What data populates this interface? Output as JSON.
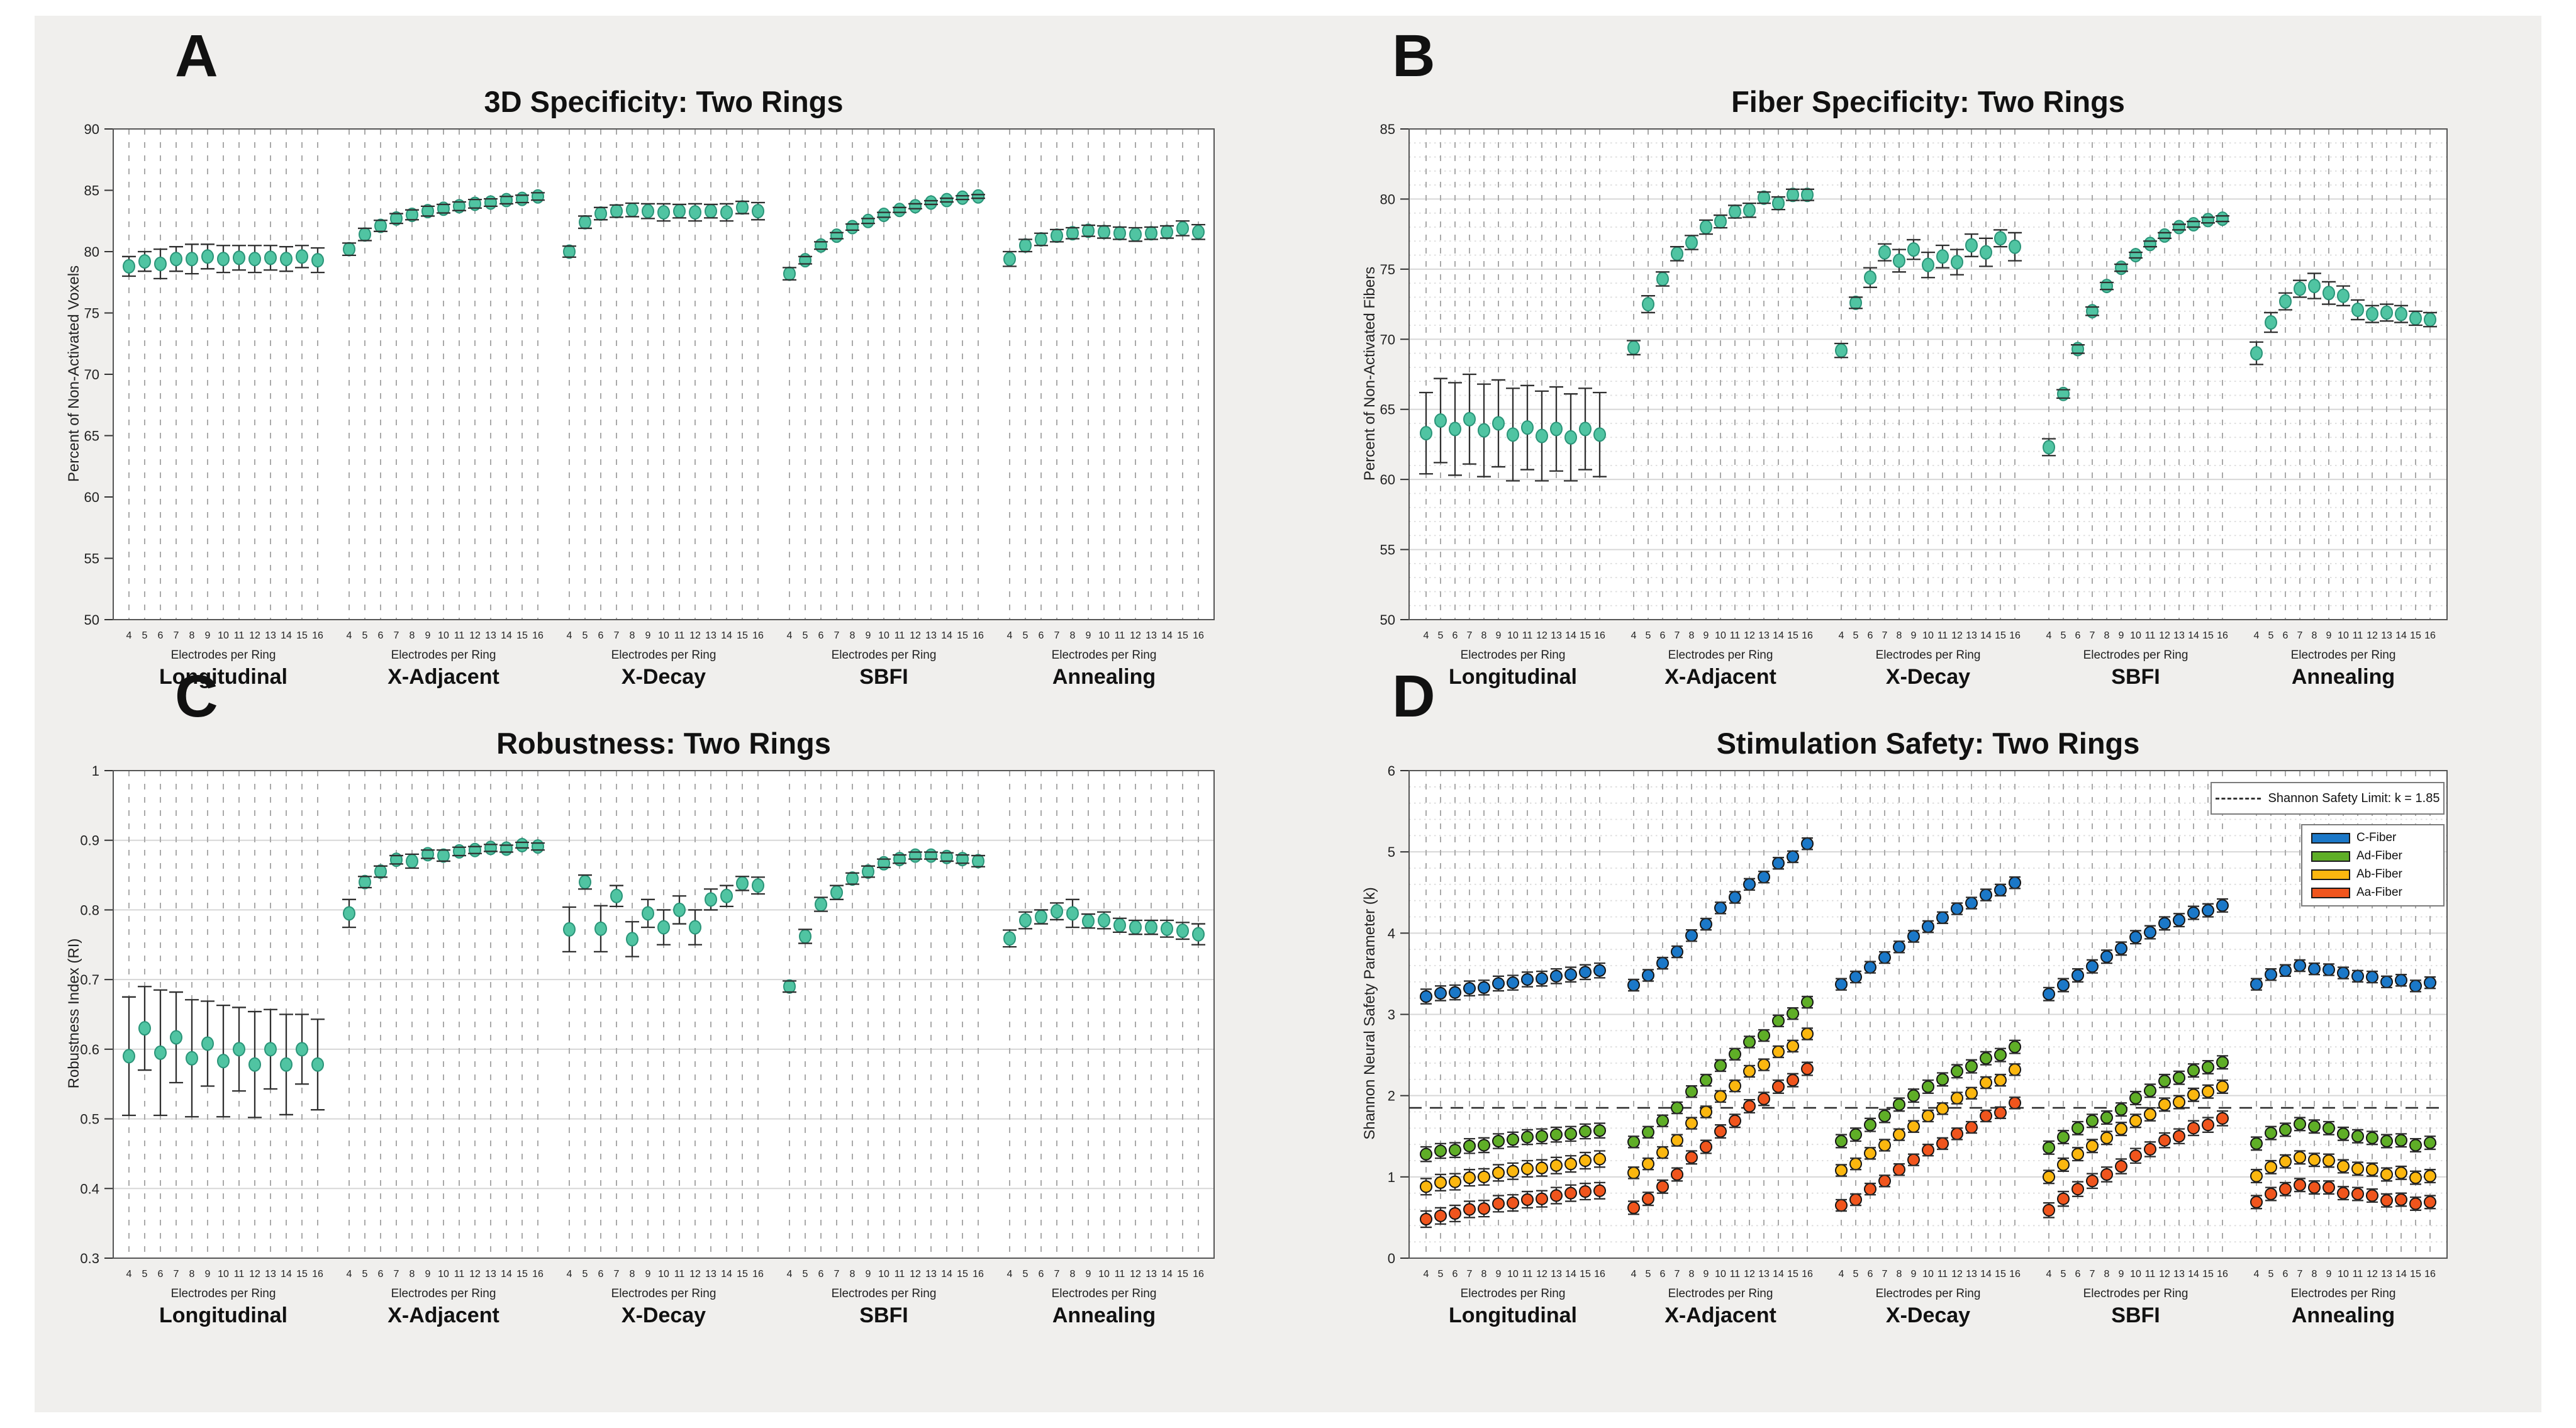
{
  "figure": {
    "background": "#f0efed",
    "panel_letters": [
      "A",
      "B",
      "C",
      "D"
    ]
  },
  "shared": {
    "x_tick_labels": [
      "4",
      "5",
      "6",
      "7",
      "8",
      "9",
      "10",
      "11",
      "12",
      "13",
      "14",
      "15",
      "16"
    ],
    "x_axis_label": "Electrodes per Ring",
    "group_labels": [
      "Longitudinal",
      "X-Adjacent",
      "X-Decay",
      "SBFI",
      "Annealing"
    ],
    "marker_color": "#50c4a2",
    "marker_edge_color": "#2a9478",
    "errorbar_color": "#2f2f2f",
    "gridline_dashed_color": "#a9a9a9",
    "gridline_solid_color": "#d7d7d7"
  },
  "chart_data": [
    {
      "type": "scatter",
      "letter": "A",
      "title": "3D Specificity: Two Rings",
      "ylabel": "Percent of Non-Activated Voxels",
      "xlabel": "Electrodes per Ring",
      "x": [
        4,
        5,
        6,
        7,
        8,
        9,
        10,
        11,
        12,
        13,
        14,
        15,
        16
      ],
      "ylim": [
        50,
        90
      ],
      "ytick_step": 5,
      "ytick_labels": [
        "50",
        "55",
        "60",
        "65",
        "70",
        "75",
        "80",
        "85",
        "90"
      ],
      "hgrid": false,
      "legend_position": "none",
      "values": [
        [
          78.8,
          79.2,
          79.0,
          79.4,
          79.4,
          79.6,
          79.4,
          79.5,
          79.4,
          79.5,
          79.4,
          79.6,
          79.3
        ],
        [
          80.2,
          81.4,
          82.1,
          82.7,
          83.0,
          83.3,
          83.5,
          83.7,
          83.9,
          84.0,
          84.2,
          84.3,
          84.5
        ],
        [
          80.0,
          82.4,
          83.1,
          83.3,
          83.4,
          83.3,
          83.2,
          83.3,
          83.2,
          83.3,
          83.2,
          83.6,
          83.3
        ],
        [
          78.2,
          79.3,
          80.5,
          81.3,
          82.0,
          82.5,
          83.0,
          83.4,
          83.7,
          84.0,
          84.2,
          84.4,
          84.5
        ],
        [
          79.4,
          80.5,
          81.0,
          81.3,
          81.5,
          81.7,
          81.6,
          81.5,
          81.4,
          81.5,
          81.6,
          81.9,
          81.6
        ]
      ],
      "errors": [
        [
          0.8,
          0.8,
          1.2,
          1.0,
          1.2,
          1.0,
          1.1,
          1.0,
          1.1,
          1.0,
          1.0,
          0.9,
          1.0
        ],
        [
          0.5,
          0.5,
          0.45,
          0.4,
          0.4,
          0.4,
          0.35,
          0.35,
          0.35,
          0.3,
          0.3,
          0.3,
          0.3
        ],
        [
          0.45,
          0.5,
          0.5,
          0.5,
          0.55,
          0.6,
          0.7,
          0.55,
          0.7,
          0.55,
          0.7,
          0.5,
          0.7
        ],
        [
          0.5,
          0.3,
          0.3,
          0.25,
          0.25,
          0.2,
          0.2,
          0.2,
          0.2,
          0.15,
          0.15,
          0.15,
          0.15
        ],
        [
          0.6,
          0.5,
          0.5,
          0.5,
          0.45,
          0.45,
          0.5,
          0.5,
          0.55,
          0.5,
          0.5,
          0.6,
          0.6
        ]
      ]
    },
    {
      "type": "scatter",
      "letter": "B",
      "title": "Fiber Specificity: Two Rings",
      "ylabel": "Percent of Non-Activated Fibers",
      "xlabel": "Electrodes per Ring",
      "x": [
        4,
        5,
        6,
        7,
        8,
        9,
        10,
        11,
        12,
        13,
        14,
        15,
        16
      ],
      "ylim": [
        50,
        85
      ],
      "ytick_step": 5,
      "ytick_labels": [
        "50",
        "55",
        "60",
        "65",
        "70",
        "75",
        "80",
        "85"
      ],
      "hgrid": true,
      "minor_step": 1,
      "legend_position": "none",
      "values": [
        [
          63.3,
          64.2,
          63.6,
          64.3,
          63.5,
          64.0,
          63.2,
          63.7,
          63.1,
          63.6,
          63.0,
          63.6,
          63.2
        ],
        [
          69.4,
          72.5,
          74.3,
          76.1,
          76.9,
          78.0,
          78.4,
          79.1,
          79.2,
          80.1,
          79.7,
          80.3,
          80.3
        ],
        [
          69.2,
          72.6,
          74.4,
          76.2,
          75.6,
          76.4,
          75.3,
          75.9,
          75.5,
          76.7,
          76.2,
          77.2,
          76.6
        ],
        [
          62.3,
          66.1,
          69.3,
          72.0,
          73.8,
          75.1,
          76.0,
          76.8,
          77.4,
          78.0,
          78.2,
          78.5,
          78.6
        ],
        [
          69.0,
          71.2,
          72.7,
          73.6,
          73.8,
          73.3,
          73.1,
          72.1,
          71.8,
          71.9,
          71.8,
          71.5,
          71.4
        ]
      ],
      "errors": [
        [
          2.9,
          3.0,
          3.3,
          3.2,
          3.3,
          3.1,
          3.3,
          3.0,
          3.2,
          3.0,
          3.1,
          2.9,
          3.0
        ],
        [
          0.5,
          0.6,
          0.5,
          0.5,
          0.5,
          0.5,
          0.45,
          0.45,
          0.5,
          0.4,
          0.45,
          0.4,
          0.4
        ],
        [
          0.5,
          0.4,
          0.7,
          0.6,
          0.8,
          0.7,
          0.9,
          0.8,
          0.9,
          0.8,
          1.0,
          0.6,
          1.0
        ],
        [
          0.6,
          0.3,
          0.3,
          0.3,
          0.25,
          0.25,
          0.2,
          0.2,
          0.2,
          0.2,
          0.2,
          0.2,
          0.2
        ],
        [
          0.8,
          0.7,
          0.6,
          0.6,
          0.9,
          0.8,
          0.7,
          0.7,
          0.6,
          0.6,
          0.6,
          0.5,
          0.5
        ]
      ]
    },
    {
      "type": "scatter",
      "letter": "C",
      "title": "Robustness: Two Rings",
      "ylabel": "Robustness Index (RI)",
      "xlabel": "Electrodes per Ring",
      "x": [
        4,
        5,
        6,
        7,
        8,
        9,
        10,
        11,
        12,
        13,
        14,
        15,
        16
      ],
      "ylim": [
        0.3,
        1.0
      ],
      "ytick_step": 0.1,
      "ytick_labels": [
        "0.3",
        "0.4",
        "0.5",
        "0.6",
        "0.7",
        "0.8",
        "0.9",
        "1"
      ],
      "hgrid": true,
      "legend_position": "none",
      "values": [
        [
          0.59,
          0.63,
          0.595,
          0.617,
          0.587,
          0.608,
          0.583,
          0.6,
          0.578,
          0.6,
          0.578,
          0.6,
          0.578
        ],
        [
          0.795,
          0.84,
          0.855,
          0.872,
          0.87,
          0.88,
          0.878,
          0.884,
          0.886,
          0.889,
          0.888,
          0.893,
          0.891
        ],
        [
          0.772,
          0.84,
          0.773,
          0.82,
          0.758,
          0.795,
          0.775,
          0.8,
          0.775,
          0.815,
          0.82,
          0.838,
          0.835
        ],
        [
          0.69,
          0.762,
          0.808,
          0.825,
          0.845,
          0.855,
          0.867,
          0.873,
          0.878,
          0.878,
          0.876,
          0.873,
          0.87
        ],
        [
          0.759,
          0.785,
          0.79,
          0.798,
          0.795,
          0.784,
          0.785,
          0.778,
          0.775,
          0.775,
          0.773,
          0.77,
          0.765
        ]
      ],
      "errors": [
        [
          0.085,
          0.06,
          0.09,
          0.065,
          0.084,
          0.061,
          0.08,
          0.06,
          0.076,
          0.057,
          0.072,
          0.05,
          0.065
        ],
        [
          0.02,
          0.008,
          0.008,
          0.006,
          0.01,
          0.006,
          0.008,
          0.006,
          0.005,
          0.005,
          0.005,
          0.004,
          0.005
        ],
        [
          0.032,
          0.01,
          0.033,
          0.015,
          0.025,
          0.02,
          0.025,
          0.02,
          0.025,
          0.015,
          0.015,
          0.01,
          0.012
        ],
        [
          0.008,
          0.01,
          0.01,
          0.01,
          0.008,
          0.008,
          0.006,
          0.006,
          0.005,
          0.005,
          0.006,
          0.006,
          0.008
        ],
        [
          0.012,
          0.012,
          0.01,
          0.012,
          0.02,
          0.01,
          0.012,
          0.01,
          0.01,
          0.01,
          0.012,
          0.012,
          0.015
        ]
      ]
    },
    {
      "type": "scatter",
      "letter": "D",
      "title": "Stimulation Safety: Two Rings",
      "ylabel": "Shannon Neural Safety Parameter (k)",
      "xlabel": "Electrodes per Ring",
      "x": [
        4,
        5,
        6,
        7,
        8,
        9,
        10,
        11,
        12,
        13,
        14,
        15,
        16
      ],
      "ylim": [
        0,
        6
      ],
      "ytick_step": 1,
      "ytick_labels": [
        "0",
        "1",
        "2",
        "3",
        "4",
        "5",
        "6"
      ],
      "hgrid": true,
      "minor_step": 0.2,
      "legend_position": "northeast",
      "safety_limit": {
        "value": 1.85,
        "label": "Shannon Safety Limit: k = 1.85"
      },
      "series": [
        {
          "name": "C-Fiber",
          "color": "#1b78c8",
          "errors": [
            0.09,
            0.07,
            0.07,
            0.08,
            0.07
          ],
          "values": [
            [
              3.22,
              3.26,
              3.27,
              3.32,
              3.33,
              3.38,
              3.39,
              3.43,
              3.44,
              3.47,
              3.49,
              3.52,
              3.54
            ],
            [
              3.36,
              3.48,
              3.63,
              3.77,
              3.97,
              4.11,
              4.31,
              4.44,
              4.6,
              4.69,
              4.86,
              4.94,
              5.1
            ],
            [
              3.37,
              3.46,
              3.58,
              3.7,
              3.83,
              3.96,
              4.08,
              4.19,
              4.3,
              4.37,
              4.47,
              4.53,
              4.62
            ],
            [
              3.25,
              3.36,
              3.48,
              3.59,
              3.71,
              3.81,
              3.95,
              4.01,
              4.12,
              4.16,
              4.25,
              4.28,
              4.34
            ],
            [
              3.37,
              3.49,
              3.54,
              3.6,
              3.56,
              3.55,
              3.51,
              3.47,
              3.46,
              3.4,
              3.42,
              3.35,
              3.39
            ]
          ]
        },
        {
          "name": "Ad-Fiber",
          "color": "#5fae27",
          "errors": [
            0.09,
            0.07,
            0.08,
            0.08,
            0.08
          ],
          "values": [
            [
              1.28,
              1.32,
              1.33,
              1.38,
              1.39,
              1.44,
              1.46,
              1.49,
              1.5,
              1.52,
              1.53,
              1.56,
              1.57
            ],
            [
              1.43,
              1.55,
              1.69,
              1.85,
              2.05,
              2.19,
              2.37,
              2.51,
              2.66,
              2.74,
              2.92,
              3.01,
              3.15
            ],
            [
              1.44,
              1.52,
              1.64,
              1.75,
              1.89,
              2.0,
              2.11,
              2.2,
              2.3,
              2.36,
              2.46,
              2.5,
              2.6
            ],
            [
              1.36,
              1.49,
              1.6,
              1.69,
              1.73,
              1.83,
              1.97,
              2.06,
              2.18,
              2.22,
              2.31,
              2.35,
              2.41
            ],
            [
              1.41,
              1.54,
              1.58,
              1.65,
              1.62,
              1.6,
              1.53,
              1.5,
              1.48,
              1.44,
              1.45,
              1.39,
              1.42
            ]
          ]
        },
        {
          "name": "Ab-Fiber",
          "color": "#fbb70f",
          "errors": [
            0.1,
            0.07,
            0.07,
            0.08,
            0.08
          ],
          "values": [
            [
              0.88,
              0.93,
              0.94,
              0.99,
              1.0,
              1.05,
              1.07,
              1.1,
              1.11,
              1.14,
              1.16,
              1.2,
              1.22
            ],
            [
              1.05,
              1.16,
              1.3,
              1.45,
              1.66,
              1.8,
              1.99,
              2.12,
              2.3,
              2.38,
              2.54,
              2.61,
              2.76
            ],
            [
              1.08,
              1.16,
              1.29,
              1.39,
              1.52,
              1.62,
              1.75,
              1.84,
              1.97,
              2.03,
              2.16,
              2.19,
              2.32
            ],
            [
              1.0,
              1.15,
              1.28,
              1.38,
              1.48,
              1.59,
              1.69,
              1.77,
              1.89,
              1.92,
              2.01,
              2.05,
              2.11
            ],
            [
              1.01,
              1.12,
              1.19,
              1.24,
              1.21,
              1.2,
              1.13,
              1.1,
              1.09,
              1.03,
              1.05,
              0.99,
              1.01
            ]
          ]
        },
        {
          "name": "Aa-Fiber",
          "color": "#f0551d",
          "errors": [
            0.1,
            0.08,
            0.07,
            0.09,
            0.08
          ],
          "values": [
            [
              0.48,
              0.52,
              0.55,
              0.6,
              0.61,
              0.67,
              0.68,
              0.72,
              0.73,
              0.77,
              0.8,
              0.82,
              0.83
            ],
            [
              0.62,
              0.73,
              0.88,
              1.03,
              1.24,
              1.37,
              1.56,
              1.69,
              1.87,
              1.96,
              2.11,
              2.19,
              2.33
            ],
            [
              0.65,
              0.72,
              0.85,
              0.95,
              1.09,
              1.21,
              1.33,
              1.41,
              1.53,
              1.61,
              1.75,
              1.79,
              1.91
            ],
            [
              0.59,
              0.73,
              0.85,
              0.95,
              1.03,
              1.13,
              1.26,
              1.34,
              1.45,
              1.5,
              1.6,
              1.64,
              1.72
            ],
            [
              0.69,
              0.79,
              0.85,
              0.9,
              0.87,
              0.87,
              0.8,
              0.79,
              0.77,
              0.71,
              0.72,
              0.67,
              0.69
            ]
          ]
        }
      ]
    }
  ]
}
